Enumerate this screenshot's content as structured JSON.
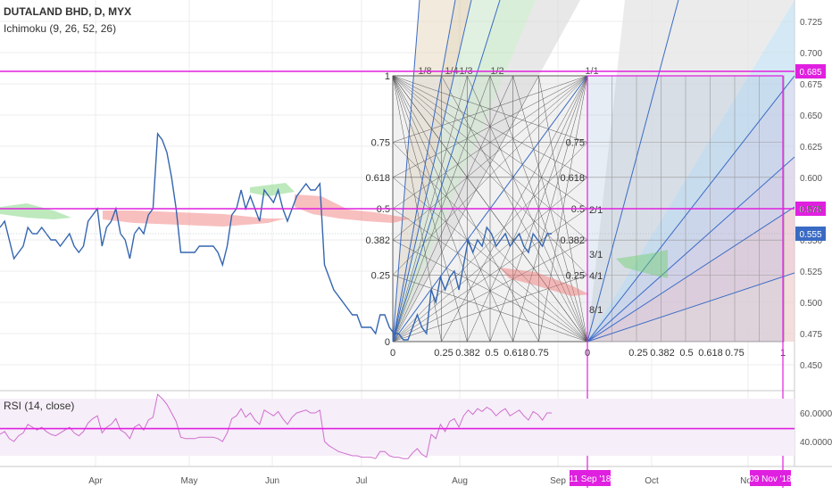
{
  "header": {
    "symbol": "DUTALAND BHD, D, MYX",
    "indicator": "Ichimoku (9, 26, 52, 26)",
    "rsi_label": "RSI (14, close)"
  },
  "colors": {
    "price_line": "#3465b0",
    "magenta": "#e020e0",
    "rsi_line": "#cf6fd0",
    "grid": "#ececec",
    "axis_text": "#555555",
    "cloud_green": "#6ccf6c",
    "cloud_red": "#f07070"
  },
  "chart_data": [
    {
      "type": "line",
      "name": "price",
      "x_ticks": [
        "Apr",
        "May",
        "Jun",
        "Jul",
        "Aug",
        "Sep",
        "Oct",
        "Nov"
      ],
      "y_ticks": [
        "0.725",
        "0.700",
        "0.675",
        "0.650",
        "0.625",
        "0.600",
        "0.575",
        "0.550",
        "0.525",
        "0.500",
        "0.475",
        "0.450"
      ],
      "ylim": [
        0.435,
        0.735
      ],
      "values": [
        0.56,
        0.565,
        0.55,
        0.535,
        0.54,
        0.545,
        0.56,
        0.555,
        0.555,
        0.56,
        0.555,
        0.55,
        0.55,
        0.545,
        0.55,
        0.555,
        0.545,
        0.54,
        0.545,
        0.565,
        0.57,
        0.575,
        0.545,
        0.56,
        0.565,
        0.575,
        0.555,
        0.55,
        0.535,
        0.555,
        0.56,
        0.555,
        0.57,
        0.575,
        0.635,
        0.63,
        0.62,
        0.6,
        0.575,
        0.54,
        0.54,
        0.54,
        0.54,
        0.545,
        0.545,
        0.545,
        0.545,
        0.54,
        0.53,
        0.545,
        0.57,
        0.575,
        0.59,
        0.575,
        0.585,
        0.575,
        0.565,
        0.59,
        0.585,
        0.58,
        0.59,
        0.575,
        0.565,
        0.575,
        0.585,
        0.59,
        0.595,
        0.59,
        0.59,
        0.595,
        0.53,
        0.52,
        0.51,
        0.505,
        0.5,
        0.495,
        0.49,
        0.49,
        0.48,
        0.48,
        0.48,
        0.475,
        0.49,
        0.49,
        0.48,
        0.475,
        0.475,
        0.47,
        0.47,
        0.48,
        0.49,
        0.48,
        0.475,
        0.51,
        0.5,
        0.52,
        0.51,
        0.52,
        0.525,
        0.51,
        0.53,
        0.55,
        0.54,
        0.55,
        0.545,
        0.56,
        0.555,
        0.545,
        0.55,
        0.555,
        0.545,
        0.55,
        0.555,
        0.545,
        0.54,
        0.555,
        0.55,
        0.545,
        0.555,
        0.555
      ],
      "last_label": "0.555",
      "horizontal_levels": [
        {
          "value": 0.685,
          "label": "0.685"
        },
        {
          "value": 0.575,
          "label": "0.575"
        }
      ],
      "gann_box": {
        "fractions_y": [
          "1",
          "0.75",
          "0.618",
          "0.5",
          "0.382",
          "0.25",
          "0"
        ],
        "fractions_x": [
          "0",
          "0.25",
          "0.382",
          "0.5",
          "0.618",
          "0.75"
        ],
        "fan_labels": [
          "1/8",
          "1/4",
          "1/3",
          "1/2",
          "1/1"
        ],
        "right_fan_labels": [
          "1/1",
          "2/1",
          "3/1",
          "4/1",
          "8/1"
        ],
        "right_y_labels": [
          "0.75",
          "0.618",
          "0.5",
          "0.382",
          "0.25"
        ],
        "right_x_labels": [
          "0",
          "0.25",
          "0.382",
          "0.5",
          "0.618",
          "0.75",
          "1"
        ]
      },
      "date_markers": [
        "11 Sep '18",
        "09 Nov '18"
      ]
    },
    {
      "type": "line",
      "name": "RSI (14, close)",
      "y_ticks": [
        "60.0000",
        "40.0000"
      ],
      "ylim": [
        25,
        80
      ],
      "level": 49,
      "values": [
        45,
        47,
        42,
        40,
        44,
        46,
        52,
        50,
        48,
        50,
        47,
        45,
        44,
        46,
        48,
        50,
        46,
        44,
        47,
        53,
        56,
        58,
        46,
        50,
        52,
        56,
        48,
        46,
        42,
        50,
        52,
        48,
        55,
        57,
        73,
        70,
        66,
        60,
        54,
        43,
        42,
        42,
        42,
        43,
        43,
        43,
        43,
        42,
        40,
        46,
        56,
        58,
        63,
        57,
        60,
        55,
        52,
        62,
        60,
        58,
        61,
        56,
        52,
        57,
        60,
        61,
        62,
        60,
        60,
        62,
        40,
        37,
        35,
        33,
        32,
        31,
        30,
        30,
        29,
        29,
        29,
        28,
        33,
        33,
        30,
        29,
        29,
        28,
        28,
        32,
        35,
        31,
        29,
        45,
        42,
        52,
        47,
        54,
        56,
        50,
        58,
        62,
        59,
        63,
        61,
        64,
        62,
        58,
        61,
        63,
        58,
        60,
        62,
        58,
        55,
        61,
        59,
        55,
        60,
        60
      ]
    }
  ]
}
